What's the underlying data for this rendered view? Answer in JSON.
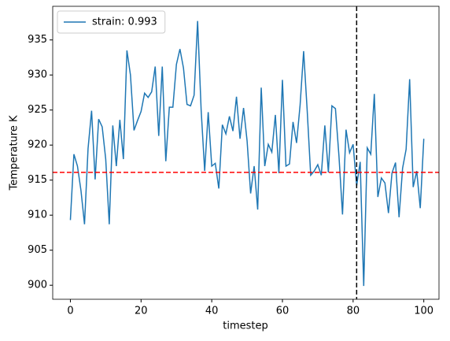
{
  "chart_data": {
    "type": "line",
    "xlabel": "timestep",
    "ylabel": "Temperature K",
    "x": [
      0,
      1,
      2,
      3,
      4,
      5,
      6,
      7,
      8,
      9,
      10,
      11,
      12,
      13,
      14,
      15,
      16,
      17,
      18,
      19,
      20,
      21,
      22,
      23,
      24,
      25,
      26,
      27,
      28,
      29,
      30,
      31,
      32,
      33,
      34,
      35,
      36,
      37,
      38,
      39,
      40,
      41,
      42,
      43,
      44,
      45,
      46,
      47,
      48,
      49,
      50,
      51,
      52,
      53,
      54,
      55,
      56,
      57,
      58,
      59,
      60,
      61,
      62,
      63,
      64,
      65,
      66,
      67,
      68,
      69,
      70,
      71,
      72,
      73,
      74,
      75,
      76,
      77,
      78,
      79,
      80,
      81,
      82,
      83,
      84,
      85,
      86,
      87,
      88,
      89,
      90,
      91,
      92,
      93,
      94,
      95,
      96,
      97,
      98,
      99,
      100
    ],
    "series": [
      {
        "name": "strain: 0.993",
        "color": "#1f77b4",
        "values": [
          909.3,
          918.7,
          917,
          913.5,
          908.7,
          919.5,
          924.9,
          915.1,
          923.7,
          922.6,
          918,
          908.7,
          922.8,
          917,
          923.6,
          918,
          933.5,
          930,
          922.1,
          923.5,
          924.8,
          927.4,
          926.8,
          927.6,
          931.2,
          921.3,
          931.2,
          917.7,
          925.4,
          925.4,
          931.5,
          933.7,
          931,
          925.8,
          925.6,
          927.1,
          937.7,
          925,
          916.3,
          924.7,
          917,
          917.4,
          913.8,
          922.9,
          921.6,
          924.1,
          922,
          926.9,
          920.9,
          925.3,
          920.6,
          913.1,
          917,
          910.8,
          928.2,
          917,
          920.1,
          919,
          924.3,
          916,
          929.3,
          917,
          917.3,
          923.3,
          920.3,
          925.7,
          933.4,
          925,
          915.7,
          916.3,
          917.2,
          915.7,
          922.8,
          916.1,
          925.6,
          925.2,
          918.4,
          910.1,
          922.2,
          918.9,
          920.1,
          914.2,
          917.6,
          899.9,
          919.6,
          918.7,
          927.3,
          912.6,
          915.3,
          914.6,
          910.3,
          916,
          917.5,
          909.7,
          916.7,
          919.4,
          929.4,
          914,
          916.3,
          911,
          920.9
        ]
      }
    ],
    "hline": {
      "value": 916.1,
      "color": "#ff0000"
    },
    "vline": {
      "value": 81,
      "color": "#000000"
    },
    "xlim": [
      -5,
      104.3
    ],
    "xticks": [
      0,
      20,
      40,
      60,
      80,
      100
    ],
    "ylim": [
      898,
      939.8
    ],
    "yticks": [
      900,
      905,
      910,
      915,
      920,
      925,
      930,
      935
    ],
    "legend": "upper left"
  }
}
